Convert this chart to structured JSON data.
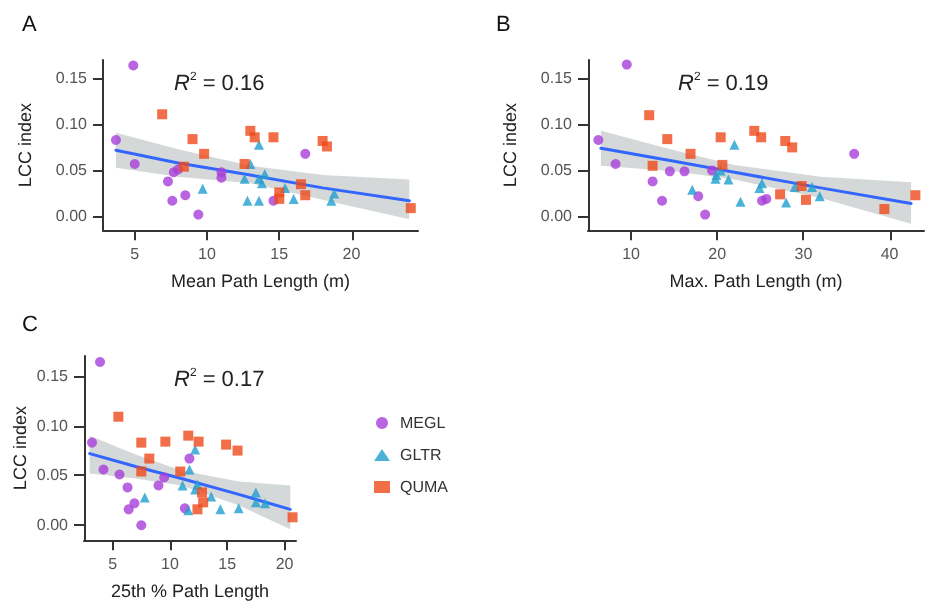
{
  "chart_data": [
    {
      "type": "scatter",
      "title": "A",
      "xlabel": "Mean Path Length (m)",
      "ylabel": "LCC index",
      "xlim": [
        2.8,
        24.6
      ],
      "ylim": [
        -0.015,
        0.17
      ],
      "xticks": [
        5,
        10,
        15,
        20
      ],
      "yticks": [
        {
          "value": 0,
          "label": "0.00"
        },
        {
          "value": 0.05,
          "label": "0.05"
        },
        {
          "value": 0.1,
          "label": "0.10"
        },
        {
          "value": 0.15,
          "label": "0.15"
        }
      ],
      "grid": false,
      "legend": false,
      "annotations": [
        "R$^{2}$ = 0.16"
      ],
      "series": [
        {
          "color": "#a73fd9",
          "marker": "circle",
          "x": [
            3.7,
            4.9,
            5.0,
            7.3,
            7.6,
            7.7,
            8.0,
            8.5,
            9.4,
            11.0,
            11.0,
            14.6,
            16.8
          ],
          "values": [
            0.083,
            0.164,
            0.057,
            0.038,
            0.017,
            0.048,
            0.051,
            0.023,
            0.002,
            0.048,
            0.042,
            0.017,
            0.068
          ]
        },
        {
          "color": "#1f9fcf",
          "marker": "triangle",
          "x": [
            9.7,
            12.6,
            12.8,
            13.0,
            13.6,
            13.6,
            13.6,
            13.8,
            14.0,
            15.4,
            16.0,
            18.6,
            18.8
          ],
          "values": [
            0.03,
            0.041,
            0.017,
            0.057,
            0.078,
            0.017,
            0.041,
            0.036,
            0.046,
            0.031,
            0.019,
            0.017,
            0.025
          ]
        },
        {
          "color": "#ee4a1c",
          "marker": "square",
          "x": [
            6.9,
            9.0,
            8.4,
            9.8,
            12.6,
            13.0,
            13.3,
            14.6,
            15.0,
            15.0,
            16.5,
            16.8,
            18.0,
            18.3,
            24.1
          ],
          "values": [
            0.111,
            0.084,
            0.054,
            0.068,
            0.057,
            0.093,
            0.086,
            0.086,
            0.026,
            0.019,
            0.035,
            0.023,
            0.082,
            0.076,
            0.009
          ]
        },
        {
          "type": "line",
          "color": "#3366ff",
          "marker": "none",
          "x": [
            3.7,
            8,
            13,
            18,
            24
          ],
          "values": [
            0.072,
            0.058,
            0.045,
            0.031,
            0.017
          ],
          "lower": [
            0.053,
            0.043,
            0.036,
            0.018,
            -0.003
          ],
          "upper": [
            0.091,
            0.073,
            0.055,
            0.045,
            0.04
          ]
        }
      ]
    },
    {
      "type": "scatter",
      "title": "B",
      "xlabel": "Max. Path Length (m)",
      "ylabel": "LCC index",
      "xlim": [
        5,
        44
      ],
      "ylim": [
        -0.015,
        0.17
      ],
      "xticks": [
        10,
        20,
        30,
        40
      ],
      "yticks": [
        {
          "value": 0,
          "label": "0.00"
        },
        {
          "value": 0.05,
          "label": "0.05"
        },
        {
          "value": 0.1,
          "label": "0.10"
        },
        {
          "value": 0.15,
          "label": "0.15"
        }
      ],
      "grid": false,
      "legend": false,
      "annotations": [
        "R$^{2}$ = 0.19"
      ],
      "series": [
        {
          "color": "#a73fd9",
          "marker": "circle",
          "x": [
            6.2,
            9.5,
            8.2,
            12.5,
            13.6,
            14.5,
            16.2,
            17.8,
            18.6,
            19.4,
            25.2,
            25.7,
            35.9
          ],
          "values": [
            0.083,
            0.165,
            0.057,
            0.038,
            0.017,
            0.049,
            0.049,
            0.022,
            0.002,
            0.05,
            0.017,
            0.019,
            0.068
          ]
        },
        {
          "color": "#1f9fcf",
          "marker": "triangle",
          "x": [
            17.1,
            19.8,
            19.9,
            20.4,
            21.3,
            22.0,
            22.7,
            24.9,
            25.2,
            28.0,
            29.0,
            31.0,
            31.9
          ],
          "values": [
            0.029,
            0.041,
            0.045,
            0.05,
            0.04,
            0.078,
            0.016,
            0.031,
            0.036,
            0.015,
            0.032,
            0.032,
            0.022
          ]
        },
        {
          "color": "#ee4a1c",
          "marker": "square",
          "x": [
            12.1,
            14.2,
            12.5,
            16.9,
            20.6,
            20.4,
            24.3,
            25.1,
            27.3,
            27.9,
            28.7,
            29.8,
            30.3,
            39.4,
            43.0
          ],
          "values": [
            0.11,
            0.084,
            0.055,
            0.068,
            0.056,
            0.086,
            0.093,
            0.086,
            0.024,
            0.082,
            0.075,
            0.033,
            0.018,
            0.008,
            0.023
          ]
        },
        {
          "type": "line",
          "color": "#3366ff",
          "marker": "none",
          "x": [
            6.5,
            15,
            22,
            32,
            42.5
          ],
          "values": [
            0.074,
            0.06,
            0.048,
            0.031,
            0.014
          ],
          "lower": [
            0.055,
            0.049,
            0.04,
            0.02,
            -0.008
          ],
          "upper": [
            0.093,
            0.072,
            0.056,
            0.043,
            0.037
          ]
        }
      ]
    },
    {
      "type": "scatter",
      "title": "C",
      "xlabel": "25th % Path Length",
      "ylabel": "LCC index",
      "xlim": [
        2.5,
        21
      ],
      "ylim": [
        -0.015,
        0.17
      ],
      "xticks": [
        5,
        10,
        15,
        20
      ],
      "yticks": [
        {
          "value": 0,
          "label": "0.00"
        },
        {
          "value": 0.05,
          "label": "0.05"
        },
        {
          "value": 0.1,
          "label": "0.10"
        },
        {
          "value": 0.15,
          "label": "0.15"
        }
      ],
      "grid": false,
      "legend": "right",
      "annotations": [
        "R$^{2}$ = 0.17"
      ],
      "series": [
        {
          "name": "MEGL",
          "color": "#a73fd9",
          "marker": "circle",
          "x": [
            3.2,
            3.9,
            4.2,
            5.6,
            6.3,
            6.4,
            6.9,
            7.5,
            9.0,
            9.5,
            11.3,
            11.7
          ],
          "values": [
            0.083,
            0.164,
            0.056,
            0.051,
            0.038,
            0.016,
            0.022,
            0.0,
            0.04,
            0.048,
            0.017,
            0.067
          ]
        },
        {
          "name": "GLTR",
          "color": "#1f9fcf",
          "marker": "triangle",
          "x": [
            7.8,
            11.1,
            11.7,
            12.2,
            12.2,
            12.4,
            11.6,
            13.6,
            14.4,
            16.0,
            17.5,
            17.5,
            18.3
          ],
          "values": [
            0.028,
            0.04,
            0.056,
            0.076,
            0.036,
            0.041,
            0.015,
            0.029,
            0.016,
            0.017,
            0.033,
            0.023,
            0.022
          ]
        },
        {
          "name": "QUMA",
          "color": "#ee4a1c",
          "marker": "square",
          "x": [
            5.5,
            7.5,
            7.5,
            8.2,
            9.6,
            10.9,
            11.6,
            12.5,
            12.8,
            12.9,
            12.4,
            14.9,
            15.9,
            20.7
          ],
          "values": [
            0.109,
            0.083,
            0.054,
            0.067,
            0.084,
            0.054,
            0.09,
            0.084,
            0.033,
            0.023,
            0.016,
            0.081,
            0.075,
            0.008
          ]
        },
        {
          "type": "line",
          "color": "#3366ff",
          "marker": "none",
          "x": [
            3,
            7,
            11,
            16,
            20.5
          ],
          "values": [
            0.072,
            0.059,
            0.047,
            0.031,
            0.016
          ],
          "lower": [
            0.052,
            0.047,
            0.04,
            0.02,
            -0.004
          ],
          "upper": [
            0.09,
            0.071,
            0.055,
            0.044,
            0.04
          ]
        }
      ]
    }
  ]
}
